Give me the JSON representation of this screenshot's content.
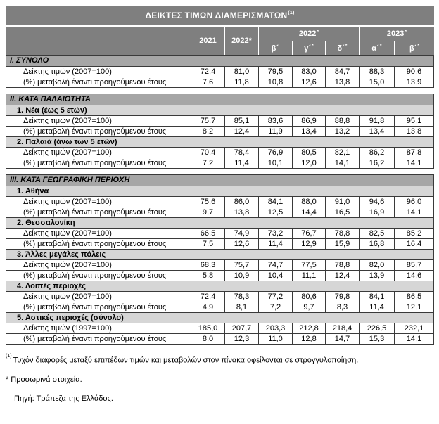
{
  "title": {
    "text": "ΔΕΙΚΤΕΣ ΤΙΜΩΝ ΔΙΑΜΕΡΙΣΜΑΤΩΝ",
    "footnote_marker": "(1)"
  },
  "header": {
    "years": [
      "2021",
      "2022*"
    ],
    "groups": [
      {
        "label": "2022",
        "sup": "*"
      },
      {
        "label": "2023",
        "sup": "*"
      }
    ],
    "quarters": [
      {
        "label": "β´",
        "sup": ""
      },
      {
        "label": "γ´",
        "sup": "*"
      },
      {
        "label": "δ´",
        "sup": "*"
      },
      {
        "label": "α´",
        "sup": "*"
      },
      {
        "label": "β´",
        "sup": "*"
      }
    ]
  },
  "table": {
    "sections": [
      {
        "title": "I. ΣΥΝΟΛΟ",
        "subsections": [
          {
            "title": "",
            "rows": [
              {
                "label": "Δείκτης τιμών (2007=100)",
                "values": [
                  "72,4",
                  "81,0",
                  "79,5",
                  "83,0",
                  "84,7",
                  "88,3",
                  "90,6"
                ]
              },
              {
                "label": "(%) μεταβολή έναντι προηγούμενου έτους",
                "values": [
                  "7,6",
                  "11,8",
                  "10,8",
                  "12,6",
                  "13,8",
                  "15,0",
                  "13,9"
                ]
              }
            ]
          }
        ]
      },
      {
        "title": "II. ΚΑΤΑ ΠΑΛΑΙΟΤΗΤΑ",
        "subsections": [
          {
            "title": "1.  Νέα (έως 5 ετών)",
            "rows": [
              {
                "label": "Δείκτης τιμών (2007=100)",
                "values": [
                  "75,7",
                  "85,1",
                  "83,6",
                  "86,9",
                  "88,8",
                  "91,8",
                  "95,1"
                ]
              },
              {
                "label": "(%) μεταβολή έναντι προηγούμενου έτους",
                "values": [
                  "8,2",
                  "12,4",
                  "11,9",
                  "13,4",
                  "13,2",
                  "13,4",
                  "13,8"
                ]
              }
            ]
          },
          {
            "title": "2.  Παλαιά (άνω των 5 ετών)",
            "rows": [
              {
                "label": "Δείκτης τιμών (2007=100)",
                "values": [
                  "70,4",
                  "78,4",
                  "76,9",
                  "80,5",
                  "82,1",
                  "86,2",
                  "87,8"
                ]
              },
              {
                "label": "(%) μεταβολή έναντι προηγούμενου έτους",
                "values": [
                  "7,2",
                  "11,4",
                  "10,1",
                  "12,0",
                  "14,1",
                  "16,2",
                  "14,1"
                ]
              }
            ]
          }
        ]
      },
      {
        "title": "III. ΚΑΤΑ ΓΕΩΓΡΑΦΙΚΗ ΠΕΡΙΟΧΗ",
        "subsections": [
          {
            "title": "1.  Αθήνα",
            "rows": [
              {
                "label": "Δείκτης τιμών (2007=100)",
                "values": [
                  "75,6",
                  "86,0",
                  "84,1",
                  "88,0",
                  "91,0",
                  "94,6",
                  "96,0"
                ]
              },
              {
                "label": "(%) μεταβολή έναντι προηγούμενου έτους",
                "values": [
                  "9,7",
                  "13,8",
                  "12,5",
                  "14,4",
                  "16,5",
                  "16,9",
                  "14,1"
                ]
              }
            ]
          },
          {
            "title": "2.  Θεσσαλονίκη",
            "rows": [
              {
                "label": "Δείκτης τιμών (2007=100)",
                "values": [
                  "66,5",
                  "74,9",
                  "73,2",
                  "76,7",
                  "78,8",
                  "82,5",
                  "85,2"
                ]
              },
              {
                "label": "(%) μεταβολή έναντι προηγούμενου έτους",
                "values": [
                  "7,5",
                  "12,6",
                  "11,4",
                  "12,9",
                  "15,9",
                  "16,8",
                  "16,4"
                ]
              }
            ]
          },
          {
            "title": "3.  Άλλες μεγάλες πόλεις",
            "rows": [
              {
                "label": "Δείκτης τιμών (2007=100)",
                "values": [
                  "68,3",
                  "75,7",
                  "74,7",
                  "77,5",
                  "78,8",
                  "82,0",
                  "85,7"
                ]
              },
              {
                "label": "(%) μεταβολή έναντι προηγούμενου έτους",
                "values": [
                  "5,8",
                  "10,9",
                  "10,4",
                  "11,1",
                  "12,4",
                  "13,9",
                  "14,6"
                ]
              }
            ]
          },
          {
            "title": "4.  Λοιπές περιοχές",
            "rows": [
              {
                "label": "Δείκτης τιμών (2007=100)",
                "values": [
                  "72,4",
                  "78,3",
                  "77,2",
                  "80,6",
                  "79,8",
                  "84,1",
                  "86,5"
                ]
              },
              {
                "label": "(%) μεταβολή έναντι προηγούμενου έτους",
                "values": [
                  "4,9",
                  "8,1",
                  "7,2",
                  "9,7",
                  "8,3",
                  "11,4",
                  "12,1"
                ]
              }
            ]
          },
          {
            "title": "5.  Αστικές περιοχές (σύνολο)",
            "rows": [
              {
                "label": "Δείκτης τιμών (1997=100)",
                "values": [
                  "185,0",
                  "207,7",
                  "203,3",
                  "212,8",
                  "218,4",
                  "226,5",
                  "232,1"
                ]
              },
              {
                "label": "(%) μεταβολή έναντι προηγούμενου έτους",
                "values": [
                  "8,0",
                  "12,3",
                  "11,0",
                  "12,8",
                  "14,7",
                  "15,3",
                  "14,1"
                ]
              }
            ]
          }
        ]
      }
    ]
  },
  "footnotes": [
    {
      "marker": "(1)",
      "text": "Τυχόν διαφορές μεταξύ επιπέδων τιμών και μεταβολών στον πίνακα οφείλονται σε στρογγυλοποίηση."
    },
    {
      "marker": "*",
      "text": "Προσωρινά στοιχεία."
    },
    {
      "marker": "",
      "text": "Πηγή: Τράπεζα της Ελλάδος."
    }
  ],
  "colors": {
    "header_bg": "#7f7f7f",
    "section_bg": "#a6a6a6",
    "subsection_bg": "#d6d6d6",
    "border": "#3a3a3a"
  }
}
